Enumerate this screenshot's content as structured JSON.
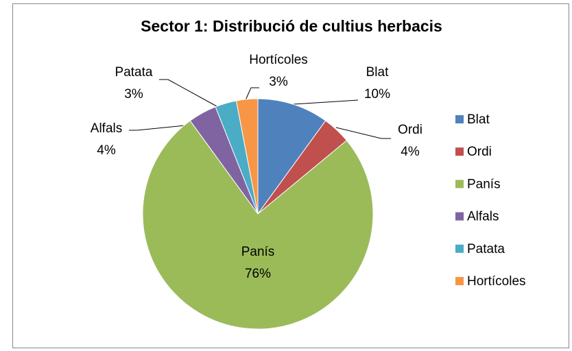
{
  "chart_data": {
    "type": "pie",
    "title": "Sector 1: Distribució de cultius herbacis",
    "categories": [
      "Blat",
      "Ordi",
      "Panís",
      "Alfals",
      "Patata",
      "Hortícoles"
    ],
    "values": [
      10,
      4,
      76,
      4,
      3,
      3
    ],
    "value_labels": [
      "10%",
      "4%",
      "76%",
      "4%",
      "3%",
      "3%"
    ],
    "colors": [
      "#4f81bd",
      "#c0504d",
      "#9bbb59",
      "#8064a2",
      "#4bacc6",
      "#f79646"
    ],
    "legend": "right"
  }
}
